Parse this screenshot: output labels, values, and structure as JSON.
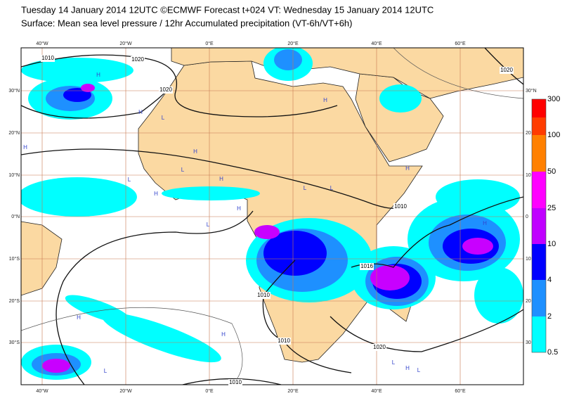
{
  "header": {
    "title": "Tuesday 14 January 2014 12UTC ©ECMWF Forecast t+024 VT: Wednesday 15 January 2014 12UTC",
    "subtitle": "Surface: Mean sea level pressure / 12hr Accumulated precipitation (VT-6h/VT+6h)"
  },
  "map": {
    "lon_labels_top": [
      "40°W",
      "20°W",
      "0°E",
      "20°E",
      "40°E",
      "60°E"
    ],
    "lon_labels_bottom": [
      "40°W",
      "20°W",
      "0°E",
      "20°E",
      "40°E",
      "60°E"
    ],
    "lat_labels_left": [
      "30°N",
      "20°N",
      "10°N",
      "0°N",
      "10°S",
      "20°S",
      "30°S"
    ],
    "lat_labels_right": [
      "30°N",
      "20",
      "10",
      "0",
      "10",
      "20",
      "30"
    ],
    "isobar_labels": [
      "1010",
      "1020",
      "1020",
      "1020",
      "1010",
      "1016",
      "1010",
      "1010",
      "1020",
      "1010"
    ],
    "pressure_centers": [
      "H",
      "H",
      "L",
      "H",
      "L",
      "H",
      "L",
      "H",
      "H",
      "L",
      "H",
      "H",
      "L",
      "L",
      "H",
      "H",
      "L",
      "H",
      "L",
      "H",
      "H",
      "L"
    ]
  },
  "colorbar": {
    "levels": [
      "300",
      "100",
      "50",
      "25",
      "10",
      "4",
      "2",
      "0.5"
    ]
  }
}
